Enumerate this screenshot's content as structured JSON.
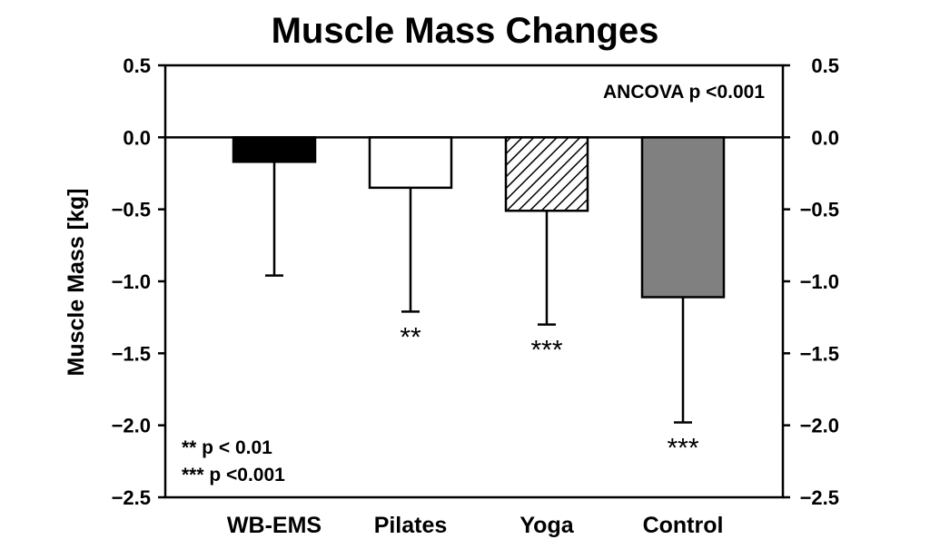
{
  "chart_data": {
    "type": "bar",
    "title": "Muscle Mass Changes",
    "xlabel": "",
    "ylabel": "Muscle Mass [kg]",
    "ylim": [
      -2.5,
      0.5
    ],
    "yticks": [
      0.5,
      0.0,
      -0.5,
      -1.0,
      -1.5,
      -2.0,
      -2.5
    ],
    "ytick_labels": [
      "0.5",
      "0.0",
      "−0.5",
      "−1.0",
      "−1.5",
      "−2.0",
      "−2.5"
    ],
    "right_axis_ticks": true,
    "grid": false,
    "categories": [
      "WB-EMS",
      "Pilates",
      "Yoga",
      "Control"
    ],
    "values": [
      -0.17,
      -0.35,
      -0.51,
      -1.11
    ],
    "error_lower": [
      -0.96,
      -1.21,
      -1.3,
      -1.98
    ],
    "significance": [
      "",
      "**",
      "***",
      "***"
    ],
    "bar_fills": [
      "#000000",
      "#ffffff",
      "hatch",
      "#808080"
    ],
    "annotations": {
      "top_right": "ANCOVA p <0.001",
      "legend_line1": "**  p < 0.01",
      "legend_line2": "*** p <0.001"
    }
  }
}
